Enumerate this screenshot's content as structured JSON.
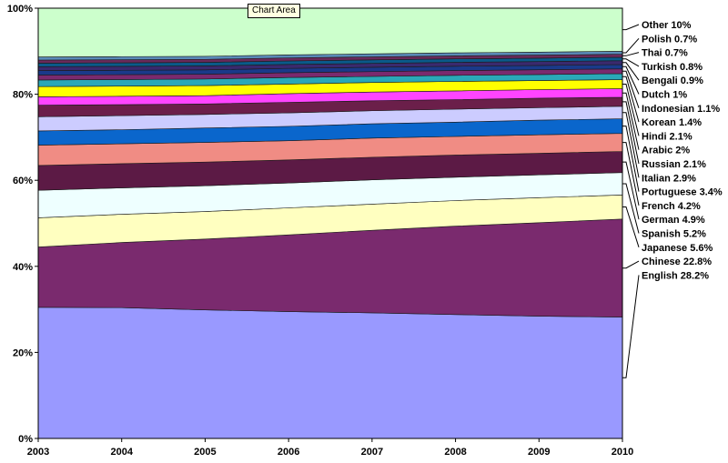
{
  "chart_data": {
    "type": "area",
    "stacked": "percent",
    "x": [
      "2003",
      "2004",
      "2005",
      "2006",
      "2007",
      "2008",
      "2009",
      "2010"
    ],
    "ylim": [
      0,
      100
    ],
    "yticks": [
      "0%",
      "20%",
      "40%",
      "60%",
      "80%",
      "100%"
    ],
    "grid": false,
    "legend_position": "right",
    "series": [
      {
        "name": "English",
        "label": "English 28.2%",
        "color": "#9999ff",
        "values": [
          29.6,
          29.7,
          29.4,
          29.1,
          28.9,
          28.6,
          28.4,
          28.2
        ]
      },
      {
        "name": "Chinese",
        "label": "Chinese 22.8%",
        "color": "#7a2a6e",
        "values": [
          13.6,
          14.8,
          16.2,
          17.6,
          19.0,
          20.4,
          21.7,
          22.8
        ]
      },
      {
        "name": "Japanese",
        "label": "Japanese 5.6%",
        "color": "#ffffc0",
        "values": [
          6.6,
          6.4,
          6.3,
          6.2,
          6.0,
          5.9,
          5.8,
          5.6
        ]
      },
      {
        "name": "Spanish",
        "label": "Spanish 5.2%",
        "color": "#eeffff",
        "values": [
          6.2,
          6.0,
          5.9,
          5.7,
          5.6,
          5.4,
          5.3,
          5.2
        ]
      },
      {
        "name": "German",
        "label": "German 4.9%",
        "color": "#5c1a45",
        "values": [
          5.6,
          5.5,
          5.4,
          5.3,
          5.2,
          5.1,
          5.0,
          4.9
        ]
      },
      {
        "name": "French",
        "label": "French 4.2%",
        "color": "#f08c84",
        "values": [
          4.6,
          4.5,
          4.5,
          4.4,
          4.4,
          4.3,
          4.3,
          4.2
        ]
      },
      {
        "name": "Portuguese",
        "label": "Portuguese 3.4%",
        "color": "#0a66cc",
        "values": [
          3.2,
          3.2,
          3.3,
          3.3,
          3.3,
          3.3,
          3.4,
          3.4
        ]
      },
      {
        "name": "Italian",
        "label": "Italian 2.9%",
        "color": "#ccccff",
        "values": [
          3.2,
          3.2,
          3.1,
          3.1,
          3.0,
          3.0,
          2.9,
          2.9
        ]
      },
      {
        "name": "Russian",
        "label": "Russian 2.1%",
        "color": "#6b1f4a",
        "values": [
          2.6,
          2.5,
          2.4,
          2.4,
          2.3,
          2.2,
          2.2,
          2.1
        ]
      },
      {
        "name": "Arabic",
        "label": "Arabic 2%",
        "color": "#ff44ff",
        "values": [
          1.9,
          1.9,
          1.9,
          2.0,
          2.0,
          2.0,
          2.0,
          2.0
        ]
      },
      {
        "name": "Hindi",
        "label": "Hindi 2.1%",
        "color": "#ffff00",
        "values": [
          2.3,
          2.3,
          2.3,
          2.2,
          2.2,
          2.2,
          2.1,
          2.1
        ]
      },
      {
        "name": "Korean",
        "label": "Korean 1.4%",
        "color": "#2aa8b8",
        "values": [
          1.5,
          1.5,
          1.5,
          1.5,
          1.4,
          1.4,
          1.4,
          1.4
        ]
      },
      {
        "name": "Indonesian",
        "label": "Indonesian 1.1%",
        "color": "#7a2a6e",
        "values": [
          1.1,
          1.1,
          1.1,
          1.1,
          1.1,
          1.1,
          1.1,
          1.1
        ]
      },
      {
        "name": "Dutch",
        "label": "Dutch 1%",
        "color": "#1a3a8a",
        "values": [
          1.0,
          1.0,
          1.0,
          1.0,
          1.0,
          1.0,
          1.0,
          1.0
        ]
      },
      {
        "name": "Bengali",
        "label": "Bengali 0.9%",
        "color": "#3a2a6e",
        "values": [
          0.9,
          0.9,
          0.9,
          0.9,
          0.9,
          0.9,
          0.9,
          0.9
        ]
      },
      {
        "name": "Turkish",
        "label": "Turkish 0.8%",
        "color": "#0a5a8a",
        "values": [
          0.8,
          0.8,
          0.8,
          0.8,
          0.8,
          0.8,
          0.8,
          0.8
        ]
      },
      {
        "name": "Thai",
        "label": "Thai 0.7%",
        "color": "#6a2a5a",
        "values": [
          0.7,
          0.7,
          0.7,
          0.7,
          0.7,
          0.7,
          0.7,
          0.7
        ]
      },
      {
        "name": "Polish",
        "label": "Polish 0.7%",
        "color": "#5a8ab8",
        "values": [
          0.7,
          0.7,
          0.7,
          0.7,
          0.7,
          0.7,
          0.7,
          0.7
        ]
      },
      {
        "name": "Other",
        "label": "Other 10%",
        "color": "#ccffcc",
        "values": [
          11.0,
          11.0,
          11.0,
          10.7,
          10.5,
          10.3,
          10.2,
          10.0
        ]
      }
    ]
  },
  "tooltip_text": "Chart Area"
}
